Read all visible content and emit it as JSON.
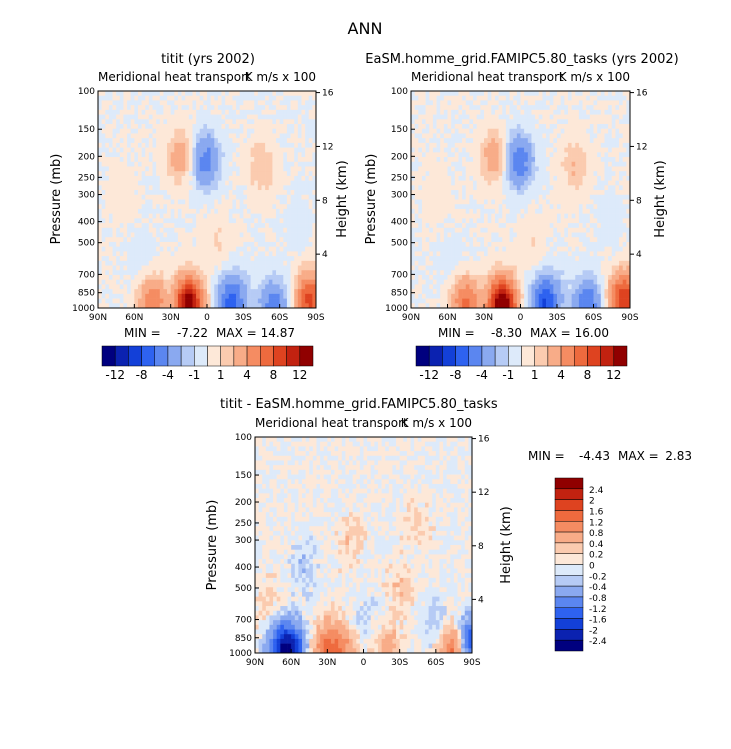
{
  "page_title": "ANN",
  "chart_data": [
    {
      "type": "heatmap",
      "title": "titit (yrs 2002)",
      "subtitle": "Meridional heat transport",
      "units": "K m/s x 100",
      "ylabel": "Pressure (mb)",
      "ylabel_right": "Height (km)",
      "x_ticks": [
        "90N",
        "60N",
        "30N",
        "0",
        "30S",
        "60S",
        "90S"
      ],
      "y_ticks": [
        100,
        150,
        200,
        250,
        300,
        400,
        500,
        700,
        850,
        1000
      ],
      "y_ticks_right": [
        16,
        12,
        8,
        4
      ],
      "min_label": "MIN =",
      "min_value": "-7.22",
      "max_label": "MAX =",
      "max_value": "14.87",
      "features": [
        {
          "lat": 15,
          "p": 970,
          "v": 14.0
        },
        {
          "lat": 45,
          "p": 960,
          "v": 6.0
        },
        {
          "lat": -20,
          "p": 960,
          "v": -7.0
        },
        {
          "lat": -55,
          "p": 975,
          "v": -5.0
        },
        {
          "lat": -85,
          "p": 920,
          "v": 9.0
        },
        {
          "lat": 22,
          "p": 200,
          "v": 3.0
        },
        {
          "lat": 1,
          "p": 210,
          "v": -5.0
        },
        {
          "lat": -45,
          "p": 220,
          "v": 2.0
        },
        {
          "lat": -10,
          "p": 500,
          "v": 1.0
        },
        {
          "lat": 55,
          "p": 600,
          "v": -0.6
        },
        {
          "lat": -75,
          "p": 400,
          "v": -0.5
        },
        {
          "lat": 70,
          "p": 300,
          "v": 0.6
        },
        {
          "lat": -30,
          "p": 800,
          "v": -0.7
        }
      ]
    },
    {
      "type": "heatmap",
      "title": "EaSM.homme_grid.FAMIPC5.80_tasks (yrs 2002)",
      "subtitle": "Meridional heat transport",
      "units": "K m/s x 100",
      "ylabel": "Pressure (mb)",
      "ylabel_right": "Height (km)",
      "x_ticks": [
        "90N",
        "60N",
        "30N",
        "0",
        "30S",
        "60S",
        "90S"
      ],
      "y_ticks": [
        100,
        150,
        200,
        250,
        300,
        400,
        500,
        700,
        850,
        1000
      ],
      "y_ticks_right": [
        16,
        12,
        8,
        4
      ],
      "min_label": "MIN =",
      "min_value": "-8.30",
      "max_label": "MAX =",
      "max_value": "16.00",
      "features": [
        {
          "lat": 15,
          "p": 970,
          "v": 15.0
        },
        {
          "lat": 45,
          "p": 960,
          "v": 6.5
        },
        {
          "lat": -20,
          "p": 960,
          "v": -8.0
        },
        {
          "lat": -55,
          "p": 975,
          "v": -6.0
        },
        {
          "lat": -85,
          "p": 920,
          "v": 10.0
        },
        {
          "lat": 22,
          "p": 200,
          "v": 3.0
        },
        {
          "lat": 1,
          "p": 210,
          "v": -5.5
        },
        {
          "lat": -45,
          "p": 220,
          "v": 2.0
        },
        {
          "lat": -10,
          "p": 500,
          "v": 1.0
        },
        {
          "lat": 55,
          "p": 600,
          "v": -0.6
        },
        {
          "lat": -75,
          "p": 400,
          "v": -0.5
        },
        {
          "lat": 70,
          "p": 300,
          "v": 0.6
        },
        {
          "lat": -30,
          "p": 800,
          "v": -0.7
        }
      ]
    },
    {
      "type": "heatmap",
      "title": "titit - EaSM.homme_grid.FAMIPC5.80_tasks",
      "subtitle": "Meridional heat transport",
      "units": "K m/s x 100",
      "ylabel": "Pressure (mb)",
      "ylabel_right": "Height (km)",
      "x_ticks": [
        "90N",
        "60N",
        "30N",
        "0",
        "30S",
        "60S",
        "90S"
      ],
      "y_ticks": [
        100,
        150,
        200,
        250,
        300,
        400,
        500,
        700,
        850,
        1000
      ],
      "y_ticks_right": [
        16,
        12,
        8,
        4
      ],
      "min_label": "MIN =",
      "min_value": "-4.43",
      "max_label": "MAX =",
      "max_value": "2.83",
      "features": [
        {
          "lat": 60,
          "p": 975,
          "v": -2.0
        },
        {
          "lat": 70,
          "p": 930,
          "v": -1.2
        },
        {
          "lat": 30,
          "p": 960,
          "v": 1.2
        },
        {
          "lat": 15,
          "p": 975,
          "v": 0.8
        },
        {
          "lat": -20,
          "p": 980,
          "v": 0.6
        },
        {
          "lat": -75,
          "p": 985,
          "v": 1.4
        },
        {
          "lat": -88,
          "p": 900,
          "v": -1.6
        },
        {
          "lat": 10,
          "p": 300,
          "v": 0.3
        },
        {
          "lat": -30,
          "p": 500,
          "v": 0.3
        },
        {
          "lat": 50,
          "p": 400,
          "v": -0.3
        },
        {
          "lat": -60,
          "p": 700,
          "v": -0.3
        },
        {
          "lat": 80,
          "p": 600,
          "v": 0.3
        },
        {
          "lat": -45,
          "p": 250,
          "v": 0.25
        },
        {
          "lat": 0,
          "p": 700,
          "v": -0.25
        }
      ]
    }
  ],
  "colorbar_top": {
    "labels": [
      "-12",
      "-8",
      "-4",
      "-1",
      "1",
      "4",
      "8",
      "12"
    ],
    "colors": [
      "#00007f",
      "#0b22b0",
      "#1340d8",
      "#2e62f0",
      "#5b86f0",
      "#8aa9f0",
      "#b6cbf5",
      "#ddeafa",
      "#fde8d8",
      "#fbcbaf",
      "#f8ac88",
      "#f58c62",
      "#ee6a3e",
      "#de4320",
      "#c22210",
      "#900000"
    ]
  },
  "colorbar_side": {
    "labels": [
      "2.4",
      "2",
      "1.6",
      "1.2",
      "0.8",
      "0.4",
      "0.2",
      "0",
      "-0.2",
      "-0.4",
      "-0.8",
      "-1.2",
      "-1.6",
      "-2",
      "-2.4"
    ],
    "colors": [
      "#900000",
      "#c22210",
      "#de4320",
      "#ee6a3e",
      "#f58c62",
      "#f8ac88",
      "#fbcbaf",
      "#fde8d8",
      "#ddeafa",
      "#b6cbf5",
      "#8aa9f0",
      "#5b86f0",
      "#2e62f0",
      "#1340d8",
      "#0b22b0",
      "#00007f"
    ]
  }
}
